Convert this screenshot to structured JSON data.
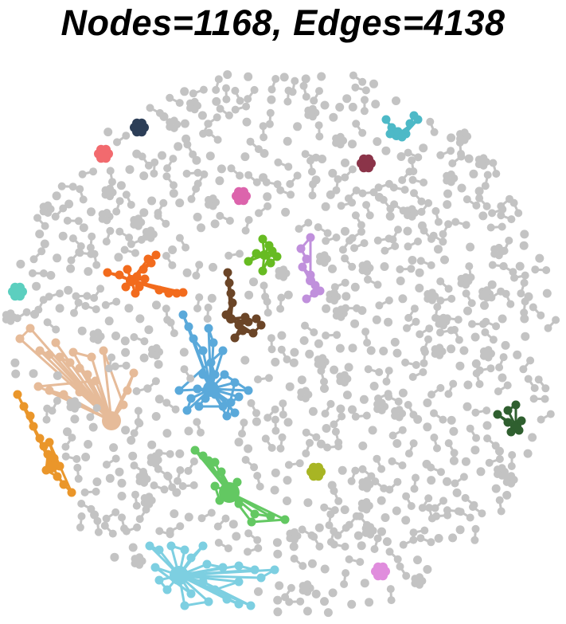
{
  "title": "Nodes=1168, Edges=4138",
  "colors": {
    "background": "#ffffff",
    "isolated": "#c3c3c3",
    "orange_red": "#f26b1d",
    "peach": "#e6bb99",
    "amber": "#ea962a",
    "sky_blue": "#5aa9da",
    "brown": "#6b4527",
    "green": "#63c862",
    "light_blue": "#7dcfe1",
    "lime": "#67bb22",
    "lavender": "#c090dc",
    "teal": "#4db9c7",
    "navy": "#2c3e57",
    "coral": "#f26a6e",
    "pink": "#dc64ac",
    "maroon": "#8b3449",
    "mint": "#5ccfbf",
    "olive": "#a8b524",
    "forest": "#2f5f2f",
    "orchid": "#e08ddd"
  }
}
